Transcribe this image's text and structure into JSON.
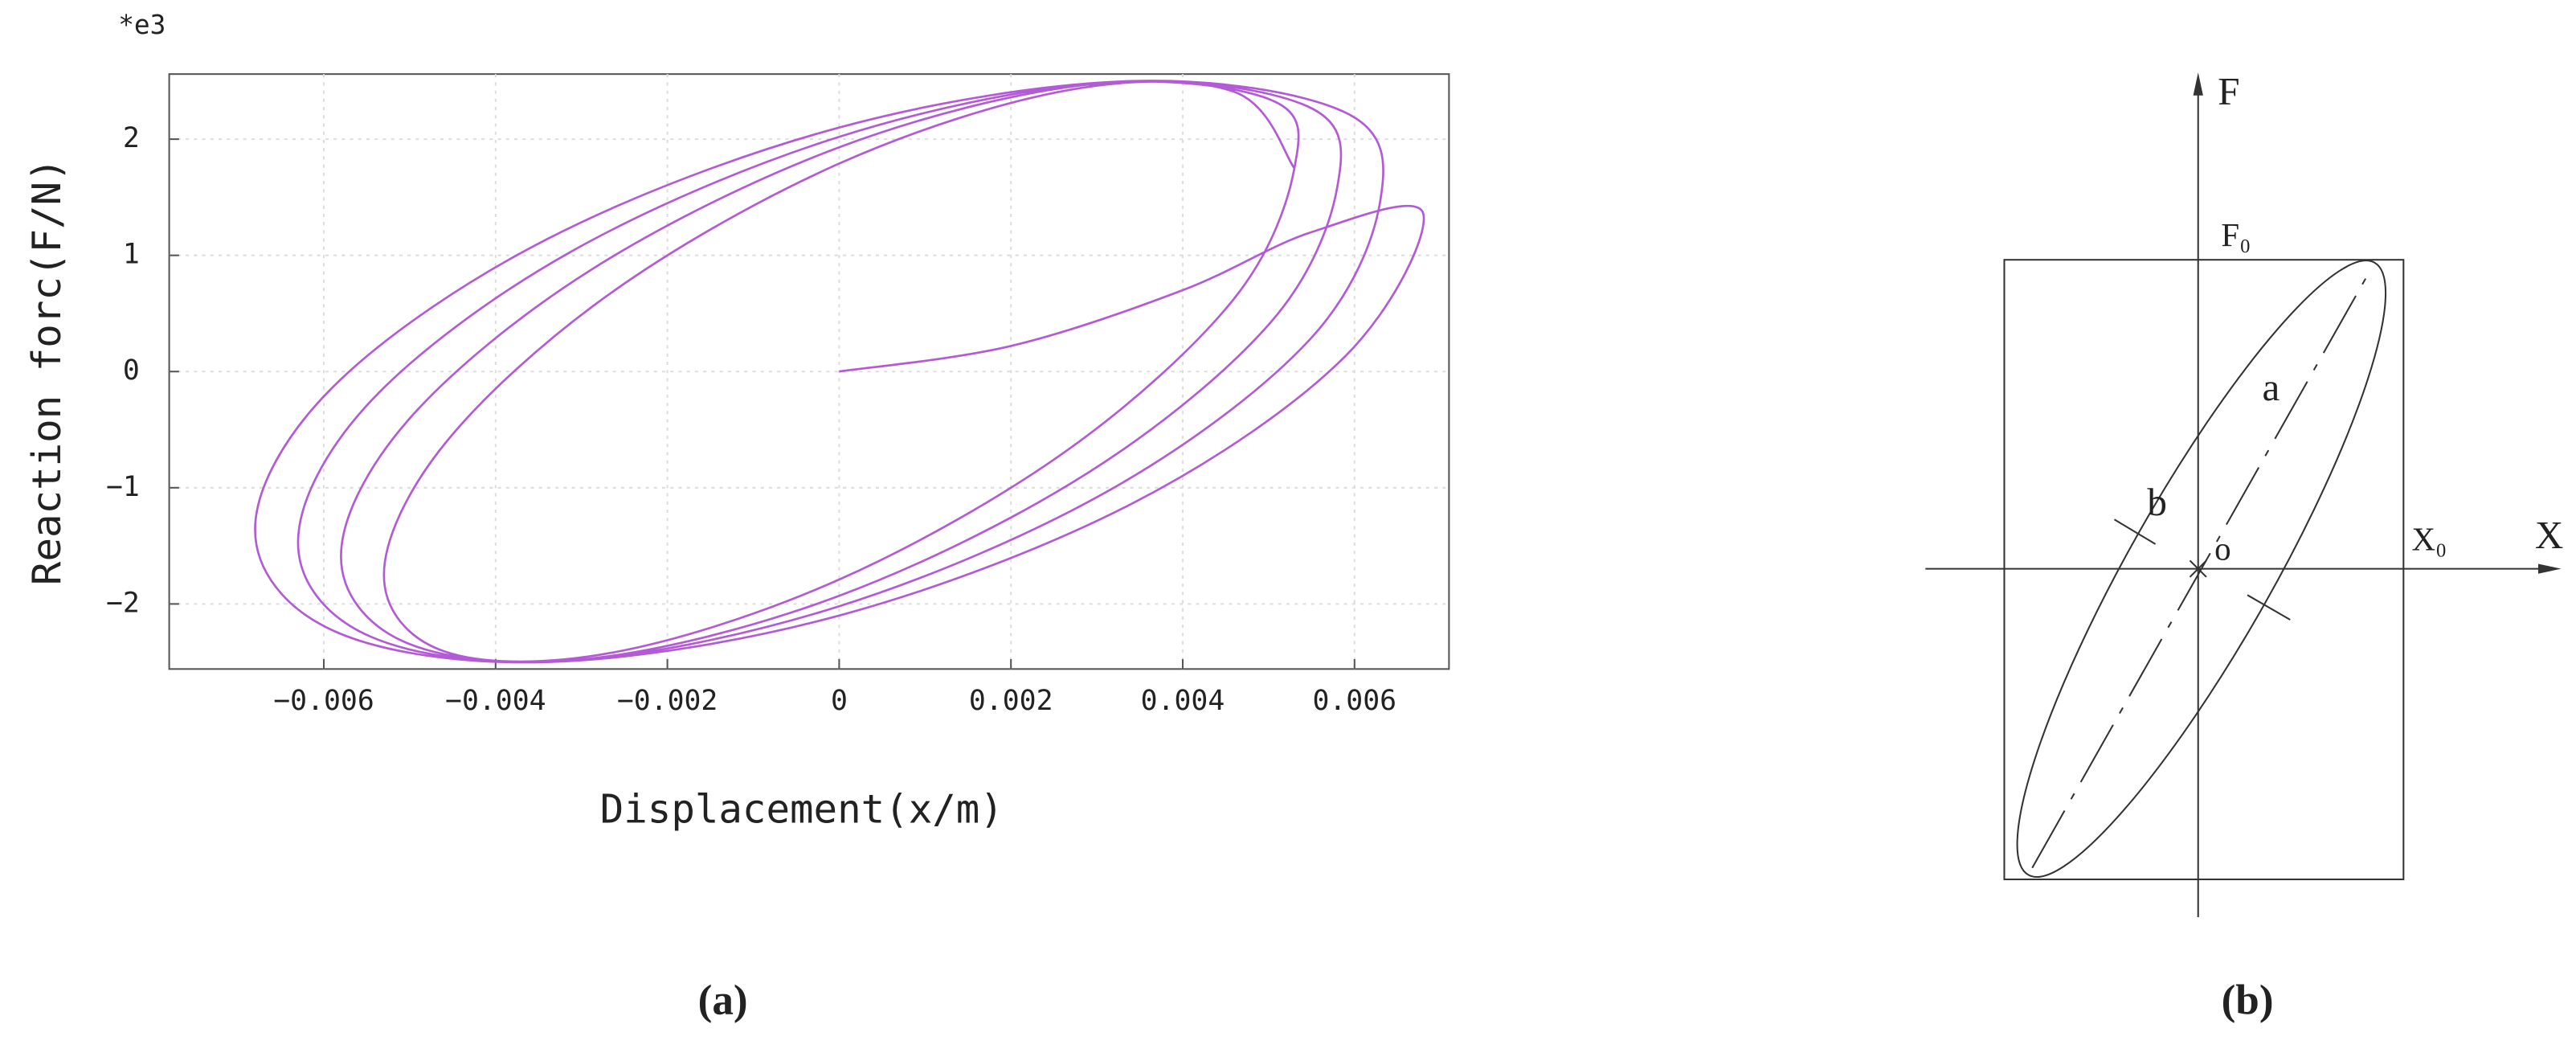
{
  "chart_data": {
    "type": "line",
    "y_scale_label": "*e3",
    "x_label": "Displacement(x/m)",
    "y_label": "Reaction forc(F/N)",
    "color": "#b35ad6",
    "grid": true,
    "xlim": [
      -0.0078,
      0.0071
    ],
    "ylim": [
      -2.56,
      2.56
    ],
    "xticks": [
      {
        "value": -0.006,
        "label": "−0.006"
      },
      {
        "value": -0.004,
        "label": "−0.004"
      },
      {
        "value": -0.002,
        "label": "−0.002"
      },
      0,
      0.002,
      0.004,
      0.006
    ],
    "yticks": [
      {
        "value": -2,
        "label": "−2"
      },
      {
        "value": -1,
        "label": "−1"
      },
      0,
      1,
      2
    ],
    "x": [
      0,
      0.002,
      0.004,
      0.0055,
      0.0068,
      0.00589,
      0.0034,
      0,
      -0.0034,
      -0.00589,
      -0.0068,
      -0.00589,
      -0.0034,
      0,
      0.0034,
      0.00589,
      0.0063,
      0.00546,
      0.00315,
      0,
      -0.00315,
      -0.00546,
      -0.0063,
      -0.00546,
      -0.00315,
      0,
      0.00315,
      0.00546,
      0.0058,
      0.00502,
      0.0029,
      0,
      -0.0029,
      -0.00502,
      -0.0058,
      -0.00502,
      -0.0029,
      0,
      0.0029,
      0.00502,
      0.0053,
      0.00459,
      0.00265,
      0,
      -0.00265,
      -0.00459,
      -0.0053,
      -0.00459,
      -0.00265,
      0,
      0.00265,
      0.00459,
      0.0053
    ],
    "values": [
      0,
      0.22,
      0.7,
      1.2,
      1.36,
      0.13,
      -1.14,
      -2.1,
      -2.5,
      -2.23,
      -1.36,
      -0.13,
      1.14,
      2.1,
      2.5,
      2.23,
      1.47,
      0.26,
      -1.02,
      -2.02,
      -2.49,
      -2.28,
      -1.47,
      -0.26,
      1.02,
      2.02,
      2.49,
      2.28,
      1.59,
      0.42,
      -0.87,
      -1.93,
      -2.47,
      -2.34,
      -1.59,
      -0.42,
      0.87,
      1.93,
      2.47,
      2.34,
      1.75,
      0.62,
      -0.68,
      -1.79,
      -2.42,
      -2.41,
      -1.75,
      -0.62,
      0.68,
      1.79,
      2.42,
      2.41,
      1.75
    ]
  },
  "captions": [
    "(a)",
    "(b)"
  ],
  "diagram": {
    "labels": {
      "f_axis": "F",
      "f0": "F₀",
      "major": "a",
      "minor": "b",
      "origin": "o",
      "x0": "X₀",
      "x_axis": "X"
    }
  }
}
